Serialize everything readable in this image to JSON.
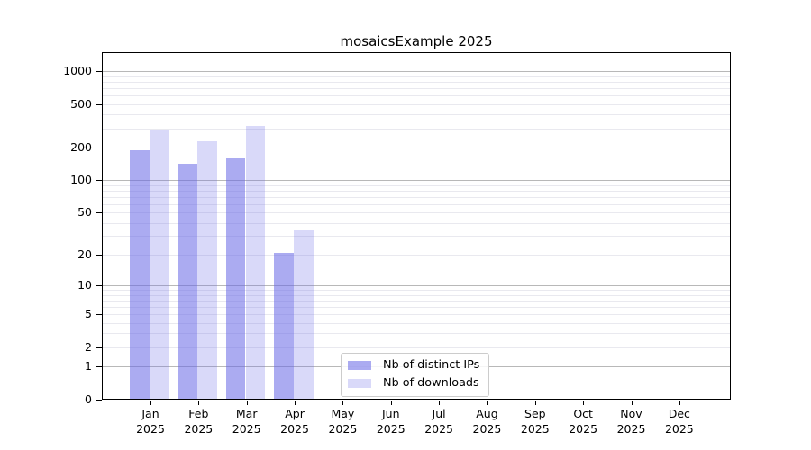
{
  "chart_data": {
    "type": "bar",
    "title": "mosaicsExample 2025",
    "categories": [
      "Jan 2025",
      "Feb 2025",
      "Mar 2025",
      "Apr 2025",
      "May 2025",
      "Jun 2025",
      "Jul 2025",
      "Aug 2025",
      "Sep 2025",
      "Oct 2025",
      "Nov 2025",
      "Dec 2025"
    ],
    "series": [
      {
        "name": "Nb of distinct IPs",
        "color": "#6666e6",
        "alpha": 0.55,
        "solid_color": "#a9a9f1",
        "values": [
          190,
          141,
          160,
          21,
          0,
          0,
          0,
          0,
          0,
          0,
          0,
          0
        ]
      },
      {
        "name": "Nb of downloads",
        "color": "#6666e6",
        "alpha": 0.25,
        "solid_color": "#d9d9f8",
        "values": [
          292,
          228,
          315,
          34,
          0,
          0,
          0,
          0,
          0,
          0,
          0,
          0
        ]
      }
    ],
    "yscale": "log1p",
    "yticks": [
      0,
      1,
      2,
      5,
      10,
      20,
      50,
      100,
      200,
      500,
      1000
    ],
    "ylim": [
      0,
      1490
    ],
    "xlabel": "",
    "ylabel": "",
    "grid": {
      "horizontal_major": true,
      "horizontal_minor": true,
      "vertical": false
    },
    "grid_major_color": "#b8b8b8",
    "grid_minor_color": "#e9e9ef",
    "legend_position": "bottom-center-left"
  }
}
